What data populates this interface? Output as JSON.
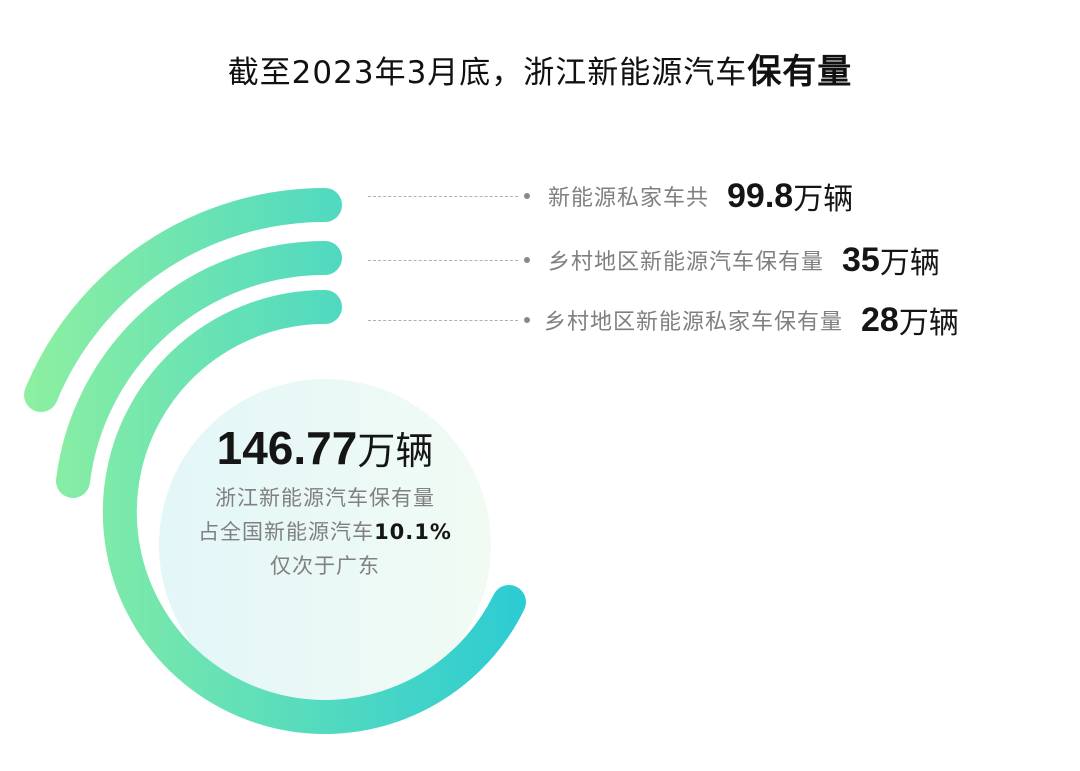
{
  "title": {
    "prefix": "截至2023年3月底，浙江新能源汽车",
    "bold": "保有量"
  },
  "colors": {
    "gradient_start": "#8ef0a0",
    "gradient_end": "#2bcbd4",
    "center_fill_start": "#e3f6f8",
    "center_fill_end": "#f1fbf4"
  },
  "stats": [
    {
      "label": "新能源私家车共",
      "value": "99.8",
      "unit": "万辆"
    },
    {
      "label": "乡村地区新能源汽车保有量",
      "value": "35",
      "unit": "万辆"
    },
    {
      "label": "乡村地区新能源私家车保有量",
      "value": "28",
      "unit": "万辆"
    }
  ],
  "center": {
    "value": "146.77",
    "unit": "万辆",
    "line1": "浙江新能源汽车保有量",
    "line2_prefix": "占全国新能源汽车",
    "line2_bold": "10.1%",
    "line3": "仅次于广东"
  }
}
